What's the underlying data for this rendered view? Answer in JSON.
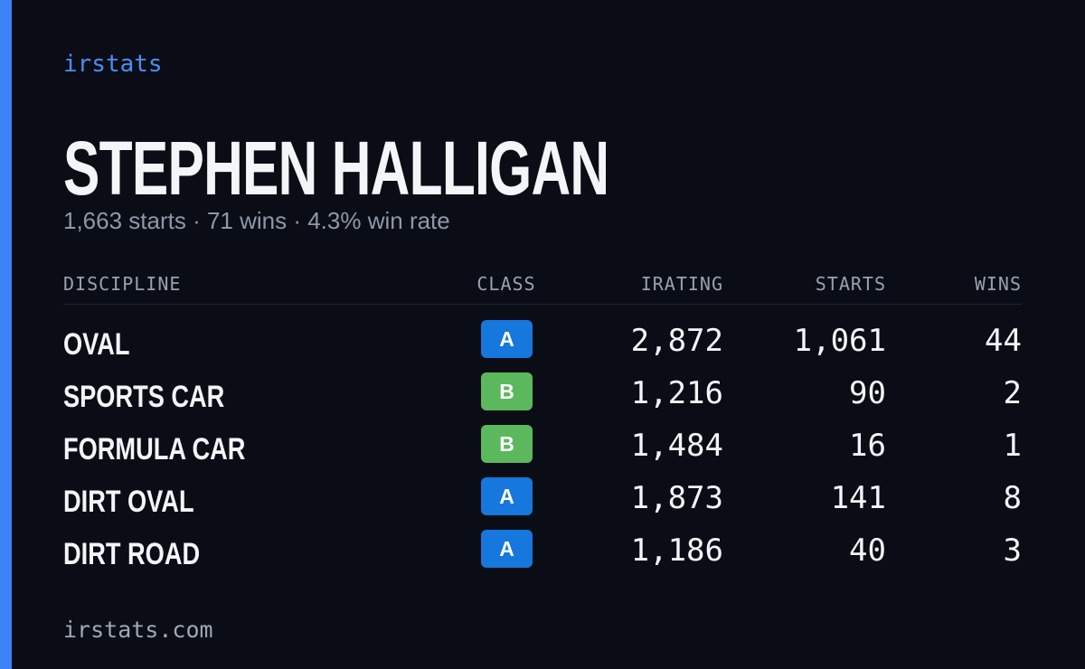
{
  "brand": "irstats",
  "driver": {
    "name": "STEPHEN HALLIGAN",
    "summary": "1,663 starts · 71 wins · 4.3% win rate"
  },
  "table": {
    "columns": [
      "DISCIPLINE",
      "CLASS",
      "IRATING",
      "STARTS",
      "WINS"
    ],
    "rows": [
      [
        "OVAL",
        "A",
        "2,872",
        "1,061",
        "44"
      ],
      [
        "SPORTS CAR",
        "B",
        "1,216",
        "90",
        "2"
      ],
      [
        "FORMULA CAR",
        "B",
        "1,484",
        "16",
        "1"
      ],
      [
        "DIRT OVAL",
        "A",
        "1,873",
        "141",
        "8"
      ],
      [
        "DIRT ROAD",
        "A",
        "1,186",
        "40",
        "3"
      ]
    ]
  },
  "footer": "irstats.com"
}
